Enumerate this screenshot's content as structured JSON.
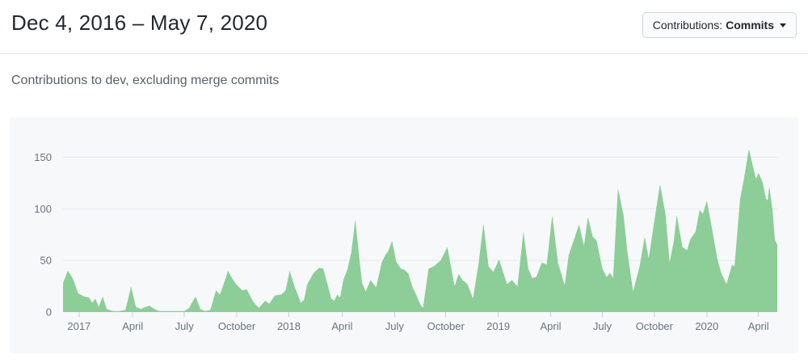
{
  "header": {
    "title": "Dec 4, 2016 – May 7, 2020",
    "contributions_button": {
      "prefix": "Contributions:",
      "value": "Commits",
      "caret_icon": "caret-down"
    }
  },
  "subtitle": "Contributions to dev, excluding merge commits",
  "chart_data": {
    "type": "area",
    "title": "Contributions to dev, excluding merge commits",
    "date_range": {
      "start": "Dec 4, 2016",
      "end": "May 7, 2020"
    },
    "x_unit": "weeks since Dec 4, 2016",
    "y_unit": "commits per week",
    "grid": true,
    "legend_position": "none",
    "ylim": [
      0,
      175
    ],
    "weeks_total": 178.4,
    "y_ticks": [
      0,
      50,
      100,
      150
    ],
    "x_ticks": [
      {
        "week": 4.0,
        "label": "2017"
      },
      {
        "week": 17.4,
        "label": "April"
      },
      {
        "week": 30.3,
        "label": "July"
      },
      {
        "week": 43.4,
        "label": "October"
      },
      {
        "week": 56.4,
        "label": "2018"
      },
      {
        "week": 69.7,
        "label": "April"
      },
      {
        "week": 82.8,
        "label": "July"
      },
      {
        "week": 95.6,
        "label": "October"
      },
      {
        "week": 108.7,
        "label": "2019"
      },
      {
        "week": 121.8,
        "label": "April"
      },
      {
        "week": 134.7,
        "label": "July"
      },
      {
        "week": 147.7,
        "label": "October"
      },
      {
        "week": 160.8,
        "label": "2020"
      },
      {
        "week": 173.7,
        "label": "April"
      }
    ],
    "points": [
      [
        0,
        28
      ],
      [
        1.2,
        40
      ],
      [
        2.4,
        33
      ],
      [
        3.8,
        18
      ],
      [
        5.3,
        15
      ],
      [
        6.5,
        14
      ],
      [
        7.3,
        9
      ],
      [
        8.1,
        13
      ],
      [
        8.9,
        5
      ],
      [
        9.9,
        15
      ],
      [
        10.9,
        3
      ],
      [
        12.5,
        1
      ],
      [
        14.1,
        1
      ],
      [
        15.6,
        2
      ],
      [
        17,
        25
      ],
      [
        18.2,
        5
      ],
      [
        19.4,
        3
      ],
      [
        20.6,
        5
      ],
      [
        21.6,
        6
      ],
      [
        22.8,
        3
      ],
      [
        24,
        1
      ],
      [
        26.7,
        1
      ],
      [
        28.9,
        1
      ],
      [
        30.3,
        1
      ],
      [
        31.5,
        4
      ],
      [
        33.1,
        15
      ],
      [
        34.3,
        3
      ],
      [
        35.4,
        1
      ],
      [
        36.8,
        2
      ],
      [
        38.2,
        21
      ],
      [
        39.2,
        17
      ],
      [
        40.2,
        28
      ],
      [
        41.2,
        40
      ],
      [
        42.2,
        33
      ],
      [
        43.2,
        27
      ],
      [
        44.8,
        21
      ],
      [
        45.9,
        22
      ],
      [
        47.5,
        10
      ],
      [
        48.9,
        4
      ],
      [
        50.5,
        11
      ],
      [
        51.5,
        8
      ],
      [
        52.9,
        16
      ],
      [
        54.5,
        17
      ],
      [
        55.6,
        21
      ],
      [
        56.6,
        40
      ],
      [
        57.8,
        25
      ],
      [
        58.6,
        17
      ],
      [
        59.4,
        9
      ],
      [
        60.2,
        12
      ],
      [
        61,
        27
      ],
      [
        62.6,
        38
      ],
      [
        64,
        43
      ],
      [
        65,
        42
      ],
      [
        66,
        28
      ],
      [
        67,
        13
      ],
      [
        67.7,
        11
      ],
      [
        68.5,
        17
      ],
      [
        69.2,
        14
      ],
      [
        70,
        31
      ],
      [
        71,
        41
      ],
      [
        72,
        58
      ],
      [
        73,
        90
      ],
      [
        74,
        52
      ],
      [
        74.7,
        28
      ],
      [
        75.6,
        20
      ],
      [
        76.8,
        31
      ],
      [
        78.2,
        24
      ],
      [
        79.6,
        48
      ],
      [
        80.6,
        56
      ],
      [
        81.2,
        59
      ],
      [
        82.2,
        69
      ],
      [
        83.2,
        49
      ],
      [
        84.4,
        42
      ],
      [
        85.3,
        41
      ],
      [
        86.3,
        37
      ],
      [
        87.3,
        24
      ],
      [
        88.3,
        16
      ],
      [
        89.3,
        7
      ],
      [
        89.9,
        4
      ],
      [
        91.3,
        42
      ],
      [
        92.5,
        44
      ],
      [
        94.3,
        50
      ],
      [
        96,
        63
      ],
      [
        97.8,
        25
      ],
      [
        98.8,
        37
      ],
      [
        99.8,
        31
      ],
      [
        101,
        27
      ],
      [
        102.4,
        13
      ],
      [
        103.8,
        47
      ],
      [
        105,
        86
      ],
      [
        106.3,
        44
      ],
      [
        107.5,
        39
      ],
      [
        108.9,
        51
      ],
      [
        110.9,
        27
      ],
      [
        112.1,
        31
      ],
      [
        113.5,
        25
      ],
      [
        115,
        78
      ],
      [
        116.2,
        42
      ],
      [
        117.2,
        33
      ],
      [
        118.2,
        34
      ],
      [
        119.6,
        48
      ],
      [
        120.8,
        46
      ],
      [
        122.2,
        94
      ],
      [
        123.6,
        48
      ],
      [
        125.3,
        26
      ],
      [
        126.3,
        55
      ],
      [
        128.9,
        85
      ],
      [
        130.1,
        64
      ],
      [
        131.1,
        92
      ],
      [
        132.3,
        73
      ],
      [
        133.3,
        69
      ],
      [
        134.7,
        42
      ],
      [
        135.8,
        34
      ],
      [
        136.6,
        38
      ],
      [
        137.4,
        33
      ],
      [
        138.6,
        120
      ],
      [
        140,
        94
      ],
      [
        141,
        57
      ],
      [
        142.4,
        20
      ],
      [
        144,
        44
      ],
      [
        145.3,
        73
      ],
      [
        146.3,
        52
      ],
      [
        147.9,
        94
      ],
      [
        149.1,
        124
      ],
      [
        150.5,
        94
      ],
      [
        151.5,
        48
      ],
      [
        152.5,
        68
      ],
      [
        153.3,
        94
      ],
      [
        154.7,
        63
      ],
      [
        155.9,
        60
      ],
      [
        156.6,
        70
      ],
      [
        158,
        78
      ],
      [
        159,
        99
      ],
      [
        159.8,
        95
      ],
      [
        160.8,
        108
      ],
      [
        162,
        83
      ],
      [
        163.4,
        52
      ],
      [
        164.4,
        38
      ],
      [
        165.7,
        27
      ],
      [
        167.1,
        46
      ],
      [
        167.7,
        44
      ],
      [
        169.1,
        109
      ],
      [
        170.1,
        130
      ],
      [
        171.3,
        158
      ],
      [
        172.5,
        138
      ],
      [
        173.1,
        129
      ],
      [
        173.7,
        135
      ],
      [
        174.7,
        126
      ],
      [
        175.6,
        110
      ],
      [
        176,
        108
      ],
      [
        176.4,
        122
      ],
      [
        177.2,
        99
      ],
      [
        177.8,
        70
      ],
      [
        178.4,
        65
      ]
    ],
    "colors": {
      "area": "#8dcd97",
      "grid": "#e5e8ea",
      "tick": "#c9ced3",
      "axis_label": "#6a737d",
      "card_bg": "#f6f8fa",
      "title_text": "#24292e",
      "subtitle_text": "#586069"
    }
  }
}
